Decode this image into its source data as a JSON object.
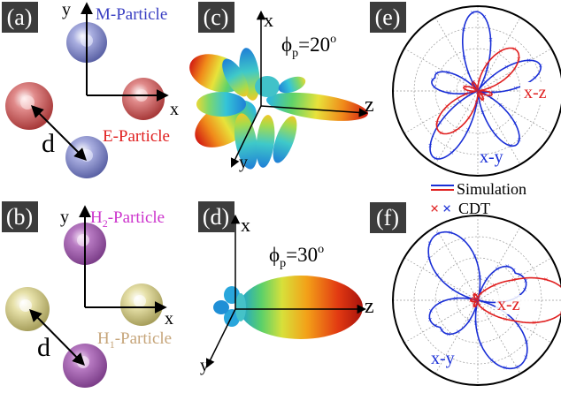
{
  "panels": {
    "a": "(a)",
    "b": "(b)",
    "c": "(c)",
    "d": "(d)",
    "e": "(e)",
    "f": "(f)"
  },
  "panel_a": {
    "axis_x": "x",
    "axis_y": "y",
    "m_particle": "M-Particle",
    "e_particle": "E-Particle",
    "distance": "d",
    "colors": {
      "m": "#7c83c2",
      "e": "#cf5a5a"
    }
  },
  "panel_b": {
    "axis_x": "x",
    "axis_y": "y",
    "h2_particle": "H",
    "h2_sub": "2",
    "h2_suffix": "-Particle",
    "h1_particle": "H",
    "h1_sub": "1",
    "h1_suffix": "-Particle",
    "distance": "d",
    "colors": {
      "h2": "#a45fb0",
      "h1": "#d9d08a",
      "h2_text": "#cc33cc",
      "h1_text": "#c6a57a"
    }
  },
  "panel_c": {
    "axis_x": "x",
    "axis_y": "y",
    "axis_z": "z",
    "phi": "ϕ",
    "phi_sub": "p",
    "phi_value": "=20",
    "phi_sup": "o"
  },
  "panel_d": {
    "axis_x": "x",
    "axis_y": "y",
    "axis_z": "z",
    "phi": "ϕ",
    "phi_sub": "p",
    "phi_value": "=30",
    "phi_sup": "o"
  },
  "polar_e": {
    "label_xz": "x-z",
    "label_xy": "x-y",
    "colors": {
      "xz": "#e02020",
      "xy": "#1a2fd6"
    }
  },
  "polar_f": {
    "label_xz": "x-z",
    "label_xy": "x-y",
    "colors": {
      "xz": "#e02020",
      "xy": "#1a2fd6"
    }
  },
  "legend": {
    "simulation": "Simulation",
    "cdt": "CDT"
  }
}
